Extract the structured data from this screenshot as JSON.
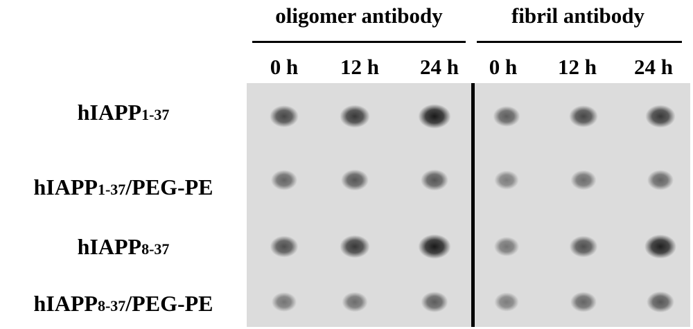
{
  "panels": [
    {
      "title": "oligomer antibody",
      "times": [
        "0 h",
        "12 h",
        "24 h"
      ]
    },
    {
      "title": "fibril antibody",
      "times": [
        "0 h",
        "12 h",
        "24 h"
      ]
    }
  ],
  "rows": [
    {
      "prefix": "hIAPP",
      "sub": "1-37",
      "suffix": ""
    },
    {
      "prefix": "hIAPP",
      "sub": "1-37",
      "suffix": "/PEG-PE"
    },
    {
      "prefix": "hIAPP",
      "sub": "8-37",
      "suffix": ""
    },
    {
      "prefix": "hIAPP",
      "sub": "8-37",
      "suffix": "/PEG-PE"
    }
  ],
  "dot_intensity": [
    [
      [
        0.65,
        0.75,
        0.95
      ],
      [
        0.5,
        0.65,
        0.75
      ]
    ],
    [
      [
        0.45,
        0.55,
        0.55
      ],
      [
        0.3,
        0.4,
        0.45
      ]
    ],
    [
      [
        0.6,
        0.75,
        0.95
      ],
      [
        0.35,
        0.6,
        0.9
      ]
    ],
    [
      [
        0.35,
        0.4,
        0.5
      ],
      [
        0.3,
        0.45,
        0.55
      ]
    ]
  ],
  "colors": {
    "membrane": "#dcdcdc",
    "divider": "#000000",
    "dot": "#1a1a1a"
  }
}
